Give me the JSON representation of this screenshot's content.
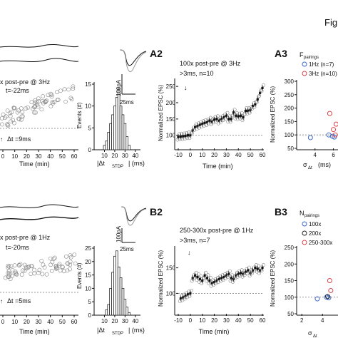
{
  "figure_label": "Fig",
  "panels": {
    "a_left": {
      "line1": "x post-pre @ 3Hz",
      "line2": "t=-22ms",
      "line3": "Δt =9ms",
      "xlabel": "Time (min)",
      "ticks": [
        "0",
        "10",
        "20",
        "30",
        "40",
        "50",
        "60"
      ]
    },
    "a_hist": {
      "ylabel": "Events (#)",
      "xlabel": "|Δt",
      "xunit": "| (ms)",
      "sub": "STDP",
      "yticks": [
        "0",
        "5",
        "10",
        "15"
      ],
      "xticks": [
        "10",
        "20",
        "30",
        "40"
      ]
    },
    "a_inset": {
      "scale_amp": "100pA",
      "scale_time": "25ms"
    },
    "A2": {
      "label": "A2",
      "line1": "100x post-pre @ 3Hz",
      "line2": ">3ms, n=10",
      "ylabel": "Normalized EPSC (%)",
      "xlabel": "Time (min)",
      "yticks": [
        "100",
        "150",
        "200",
        "250"
      ],
      "xticks": [
        "-10",
        "0",
        "10",
        "20",
        "30",
        "40",
        "50",
        "60"
      ]
    },
    "A3": {
      "label": "A3",
      "legend_title": "F",
      "legend_title_sub": "pairings",
      "legend": [
        "1Hz (n=7)",
        "3Hz (n=10)"
      ],
      "ylabel": "Normalized EPSC (%)",
      "xlabel": "(ms)",
      "yticks": [
        "50",
        "100",
        "150",
        "200",
        "250",
        "300"
      ],
      "xticks": [
        "4",
        "6"
      ]
    },
    "b_left": {
      "line1": "x post-pre @ 1Hz",
      "line2": "t=-20ms",
      "line3": "Δt =5ms",
      "xlabel": "Time (min)",
      "ticks": [
        "0",
        "10",
        "20",
        "30",
        "40",
        "50",
        "60"
      ]
    },
    "b_hist": {
      "ylabel": "Events (#)",
      "xlabel": "|Δt",
      "xunit": "| (ms)",
      "sub": "STDP",
      "yticks": [
        "0",
        "5",
        "10",
        "15",
        "20",
        "25"
      ],
      "xticks": [
        "10",
        "20",
        "30",
        "40"
      ]
    },
    "b_inset": {
      "scale_amp": "100pA",
      "scale_time": "25ms"
    },
    "B2": {
      "label": "B2",
      "line1": "250-300x post-pre @ 1Hz",
      "line2": ">3ms, n=7",
      "ylabel": "Normalized EPSC (%)",
      "xlabel": "Time (min)",
      "yticks": [
        "100",
        "150"
      ],
      "xticks": [
        "-10",
        "0",
        "10",
        "20",
        "30",
        "40",
        "50",
        "60"
      ]
    },
    "B3": {
      "label": "B3",
      "legend_title": "N",
      "legend_title_sub": "pairings",
      "legend": [
        "100x",
        "200x",
        "250-300x"
      ],
      "ylabel": "Normalized EPSC (%)",
      "xlabel": "(ms)",
      "yticks": [
        "50",
        "100",
        "150",
        "200",
        "250"
      ],
      "xticks": [
        "2",
        "4"
      ]
    }
  },
  "colors": {
    "blue": "#3a67c9",
    "red": "#d9434a",
    "black": "#222222",
    "grey": "#9a9a9a"
  },
  "chart_data": [
    {
      "type": "scatter",
      "panel": "A2",
      "x_range": [
        -10,
        60
      ],
      "ylim": [
        60,
        270
      ],
      "reference_y": 100,
      "x": [
        -10,
        -8,
        -6,
        -4,
        -2,
        0,
        2,
        4,
        6,
        8,
        10,
        12,
        14,
        16,
        18,
        20,
        22,
        24,
        26,
        28,
        30,
        32,
        34,
        36,
        38,
        40,
        42,
        44,
        46,
        48,
        50,
        52,
        54,
        56,
        58,
        60
      ],
      "values": [
        95,
        96,
        97,
        98,
        100,
        100,
        115,
        125,
        128,
        132,
        135,
        138,
        140,
        145,
        142,
        148,
        150,
        145,
        150,
        155,
        160,
        150,
        150,
        170,
        160,
        158,
        160,
        155,
        175,
        175,
        178,
        190,
        195,
        210,
        230,
        245
      ]
    },
    {
      "type": "scatter",
      "panel": "B2",
      "x_range": [
        -10,
        60
      ],
      "ylim": [
        60,
        190
      ],
      "reference_y": 100,
      "x": [
        -8,
        -6,
        -4,
        -2,
        0,
        2,
        4,
        6,
        8,
        10,
        12,
        14,
        16,
        18,
        20,
        22,
        24,
        26,
        28,
        30,
        32,
        34,
        36,
        38,
        40,
        42,
        44,
        46,
        48,
        50,
        52,
        54,
        56,
        58,
        60
      ],
      "values": [
        90,
        92,
        95,
        98,
        100,
        130,
        135,
        132,
        128,
        125,
        135,
        130,
        125,
        120,
        122,
        125,
        128,
        130,
        132,
        135,
        138,
        130,
        128,
        135,
        138,
        140,
        138,
        142,
        145,
        140,
        145,
        150,
        148,
        145,
        150
      ]
    },
    {
      "type": "scatter",
      "panel": "A3",
      "x_range": [
        2,
        6.5
      ],
      "ylim": [
        50,
        300
      ],
      "reference_y": 100,
      "series": [
        {
          "name": "1Hz (n=7)",
          "x": [
            3.5,
            5.5,
            5.9,
            6.1
          ],
          "values": [
            90,
            100,
            95,
            92
          ]
        },
        {
          "name": "3Hz (n=10)",
          "x": [
            5.6,
            6.0,
            6.2,
            6.3
          ],
          "values": [
            180,
            120,
            100,
            140
          ]
        }
      ]
    },
    {
      "type": "scatter",
      "panel": "B3",
      "x_range": [
        1.5,
        5.5
      ],
      "ylim": [
        50,
        250
      ],
      "reference_y": 100,
      "series": [
        {
          "name": "100x",
          "x": [
            3.5,
            4.4,
            4.6
          ],
          "values": [
            95,
            100,
            98
          ]
        },
        {
          "name": "200x",
          "x": [
            4.5
          ],
          "values": [
            102
          ]
        },
        {
          "name": "250-300x",
          "x": [
            4.7,
            4.8
          ],
          "values": [
            150,
            120
          ]
        }
      ]
    },
    {
      "type": "bar",
      "panel": "a_hist",
      "xlim": [
        0,
        45
      ],
      "ylim": [
        0,
        15
      ],
      "categories": [
        "10",
        "12",
        "14",
        "16",
        "18",
        "20",
        "22",
        "24",
        "26",
        "28",
        "30",
        "32",
        "34"
      ],
      "values": [
        1,
        2,
        4,
        6,
        8,
        10,
        12,
        14,
        10,
        8,
        6,
        3,
        1
      ]
    },
    {
      "type": "bar",
      "panel": "b_hist",
      "xlim": [
        0,
        45
      ],
      "ylim": [
        0,
        25
      ],
      "categories": [
        "12",
        "14",
        "16",
        "18",
        "20",
        "22",
        "24",
        "26",
        "28",
        "30",
        "32",
        "34"
      ],
      "values": [
        2,
        4,
        10,
        16,
        22,
        24,
        18,
        14,
        10,
        6,
        3,
        1
      ]
    }
  ]
}
